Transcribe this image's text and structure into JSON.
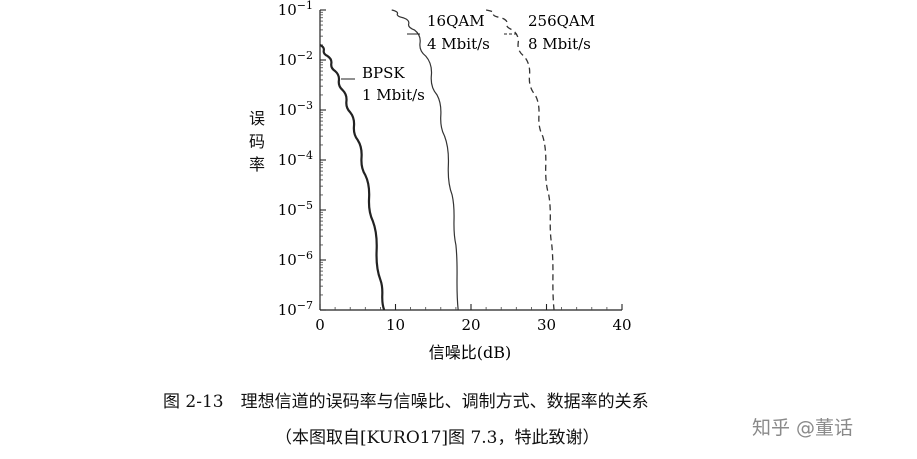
{
  "chart_data": {
    "type": "line",
    "ylabel": "误码率",
    "xlabel": "信噪比(dB)",
    "x_ticks": [
      "0",
      "10",
      "20",
      "30",
      "40"
    ],
    "xlim": [
      0,
      40
    ],
    "ylim_exponent": [
      -7,
      -1
    ],
    "y_scale": "log",
    "y_ticks": [
      {
        "base": "10",
        "exp": "−1",
        "value": 0.1
      },
      {
        "base": "10",
        "exp": "−2",
        "value": 0.01
      },
      {
        "base": "10",
        "exp": "−3",
        "value": 0.001
      },
      {
        "base": "10",
        "exp": "−4",
        "value": 0.0001
      },
      {
        "base": "10",
        "exp": "−5",
        "value": 1e-05
      },
      {
        "base": "10",
        "exp": "−6",
        "value": 1e-06
      },
      {
        "base": "10",
        "exp": "−7",
        "value": 1e-07
      }
    ],
    "grid": false,
    "series": [
      {
        "name": "BPSK",
        "rate": "1 Mbit/s",
        "style": "solid-bold",
        "points": [
          [
            0,
            0.02
          ],
          [
            1,
            0.012
          ],
          [
            2,
            0.006
          ],
          [
            3,
            0.0025
          ],
          [
            4,
            0.0009
          ],
          [
            5,
            0.00025
          ],
          [
            6,
            5e-05
          ],
          [
            7,
            6e-06
          ],
          [
            8,
            4e-07
          ],
          [
            8.5,
            1e-07
          ]
        ]
      },
      {
        "name": "16QAM",
        "rate": "4 Mbit/s",
        "style": "solid",
        "points": [
          [
            9.5,
            0.1
          ],
          [
            11,
            0.07
          ],
          [
            12.5,
            0.04
          ],
          [
            14,
            0.012
          ],
          [
            15.5,
            0.002
          ],
          [
            16.5,
            0.0003
          ],
          [
            17.5,
            2e-05
          ],
          [
            18,
            2e-06
          ],
          [
            18.3,
            1e-07
          ]
        ]
      },
      {
        "name": "256QAM",
        "rate": "8 Mbit/s",
        "style": "dashed",
        "points": [
          [
            22,
            0.1
          ],
          [
            24,
            0.07
          ],
          [
            25.5,
            0.04
          ],
          [
            27,
            0.012
          ],
          [
            28.5,
            0.002
          ],
          [
            29.5,
            0.0003
          ],
          [
            30.3,
            2e-05
          ],
          [
            30.7,
            2e-06
          ],
          [
            31,
            1e-07
          ]
        ]
      }
    ]
  },
  "caption": {
    "line1": "图 2-13　理想信道的误码率与信噪比、调制方式、数据率的关系",
    "line2": "（本图取自[KURO17]图 7.3，特此致谢）"
  },
  "watermark": "知乎 @董话"
}
